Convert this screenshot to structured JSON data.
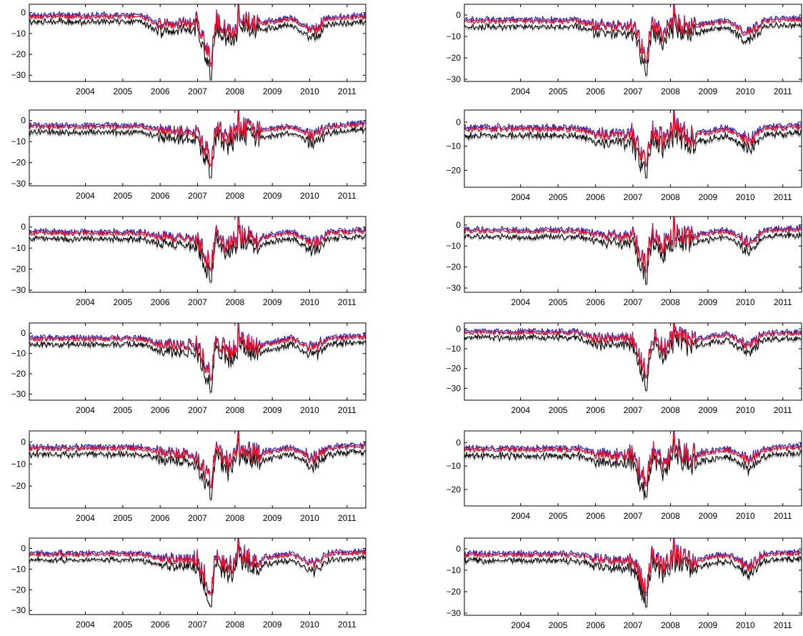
{
  "colors": {
    "lower": "#000000",
    "band": "#9a9a9a",
    "upper": "#1f1fbf",
    "estimate": "#e8102a",
    "axis": "#000000"
  },
  "chart_data": [
    {
      "type": "line",
      "panel": "r1c1",
      "x_ticks": [
        "2004",
        "2005",
        "2006",
        "2007",
        "2008",
        "2009",
        "2010",
        "2011"
      ],
      "xlim": [
        2003.0,
        2012.0
      ],
      "ylim": [
        -33,
        4
      ],
      "y_ticks": [
        0,
        -10,
        -20,
        -30
      ],
      "y_tick_labels": [
        "0",
        "−10",
        "−20",
        "−30"
      ],
      "grid": false,
      "series": [
        {
          "role": "estimate",
          "trend": [
            [
              2003.0,
              -2
            ],
            [
              2006.0,
              -2
            ],
            [
              2006.5,
              -6
            ],
            [
              2007.5,
              -5
            ],
            [
              2007.85,
              -22
            ],
            [
              2008.0,
              -4
            ],
            [
              2008.3,
              -10
            ],
            [
              2008.7,
              -4
            ],
            [
              2009.0,
              -6
            ],
            [
              2010.0,
              -3
            ],
            [
              2010.6,
              -9
            ],
            [
              2011.0,
              -3
            ],
            [
              2012.0,
              -2
            ]
          ],
          "min": [
            2007.85,
            -32
          ],
          "max": [
            2008.6,
            3
          ]
        }
      ]
    },
    {
      "type": "line",
      "panel": "r1c2",
      "x_ticks": [
        "2004",
        "2005",
        "2006",
        "2007",
        "2008",
        "2009",
        "2010",
        "2011"
      ],
      "xlim": [
        2003.0,
        2012.0
      ],
      "ylim": [
        -31,
        5
      ],
      "y_ticks": [
        0,
        -10,
        -20,
        -30
      ],
      "y_tick_labels": [
        "0",
        "−10",
        "−20",
        "−30"
      ],
      "grid": false,
      "series": [
        {
          "role": "estimate",
          "trend": [
            [
              2003.0,
              -3
            ],
            [
              2006.0,
              -3
            ],
            [
              2006.5,
              -5
            ],
            [
              2007.5,
              -6
            ],
            [
              2007.85,
              -20
            ],
            [
              2008.0,
              -4
            ],
            [
              2008.3,
              -9
            ],
            [
              2008.7,
              -4
            ],
            [
              2009.0,
              -6
            ],
            [
              2010.0,
              -3
            ],
            [
              2010.6,
              -9
            ],
            [
              2011.0,
              -3
            ],
            [
              2012.0,
              -2
            ]
          ],
          "min": [
            2007.85,
            -28
          ],
          "max": [
            2008.6,
            4
          ]
        }
      ]
    },
    {
      "type": "line",
      "panel": "r2c1",
      "x_ticks": [
        "2004",
        "2005",
        "2006",
        "2007",
        "2008",
        "2009",
        "2010",
        "2011"
      ],
      "xlim": [
        2003.0,
        2012.0
      ],
      "ylim": [
        -31,
        5
      ],
      "y_ticks": [
        0,
        -10,
        -20,
        -30
      ],
      "y_tick_labels": [
        "0",
        "−10",
        "−20",
        "−30"
      ],
      "grid": false,
      "series": [
        {
          "role": "estimate",
          "trend": [
            [
              2003.0,
              -3
            ],
            [
              2006.0,
              -3
            ],
            [
              2006.5,
              -5
            ],
            [
              2007.5,
              -6
            ],
            [
              2007.85,
              -19
            ],
            [
              2008.0,
              -3
            ],
            [
              2008.3,
              -9
            ],
            [
              2008.7,
              -3
            ],
            [
              2009.0,
              -6
            ],
            [
              2010.0,
              -3
            ],
            [
              2010.6,
              -8
            ],
            [
              2011.0,
              -3
            ],
            [
              2012.0,
              -2
            ]
          ],
          "min": [
            2007.85,
            -27
          ],
          "max": [
            2008.6,
            5
          ]
        }
      ]
    },
    {
      "type": "line",
      "panel": "r2c2",
      "x_ticks": [
        "2004",
        "2005",
        "2006",
        "2007",
        "2008",
        "2009",
        "2010",
        "2011"
      ],
      "xlim": [
        2003.0,
        2012.0
      ],
      "ylim": [
        -27,
        5
      ],
      "y_ticks": [
        0,
        -10,
        -20
      ],
      "y_tick_labels": [
        "0",
        "−10",
        "−20"
      ],
      "grid": false,
      "series": [
        {
          "role": "estimate",
          "trend": [
            [
              2003.0,
              -3
            ],
            [
              2006.0,
              -3
            ],
            [
              2006.5,
              -5
            ],
            [
              2007.5,
              -6
            ],
            [
              2007.85,
              -17
            ],
            [
              2008.0,
              -3
            ],
            [
              2008.3,
              -8
            ],
            [
              2008.7,
              -3
            ],
            [
              2009.0,
              -6
            ],
            [
              2010.0,
              -3
            ],
            [
              2010.6,
              -8
            ],
            [
              2011.0,
              -3
            ],
            [
              2012.0,
              -2
            ]
          ],
          "min": [
            2007.85,
            -23
          ],
          "max": [
            2008.6,
            4
          ]
        }
      ]
    },
    {
      "type": "line",
      "panel": "r3c1",
      "x_ticks": [
        "2004",
        "2005",
        "2006",
        "2007",
        "2008",
        "2009",
        "2010",
        "2011"
      ],
      "xlim": [
        2003.0,
        2012.0
      ],
      "ylim": [
        -31,
        5
      ],
      "y_ticks": [
        0,
        -10,
        -20,
        -30
      ],
      "y_tick_labels": [
        "0",
        "−10",
        "−20",
        "−30"
      ],
      "grid": false,
      "series": [
        {
          "role": "estimate",
          "trend": [
            [
              2003.0,
              -3
            ],
            [
              2006.0,
              -3
            ],
            [
              2006.5,
              -5
            ],
            [
              2007.5,
              -6
            ],
            [
              2007.85,
              -19
            ],
            [
              2008.0,
              -3
            ],
            [
              2008.3,
              -9
            ],
            [
              2008.7,
              -3
            ],
            [
              2009.0,
              -6
            ],
            [
              2010.0,
              -3
            ],
            [
              2010.6,
              -8
            ],
            [
              2011.0,
              -3
            ],
            [
              2012.0,
              -2
            ]
          ],
          "min": [
            2007.85,
            -26
          ],
          "max": [
            2008.6,
            4
          ]
        }
      ]
    },
    {
      "type": "line",
      "panel": "r3c2",
      "x_ticks": [
        "2004",
        "2005",
        "2006",
        "2007",
        "2008",
        "2009",
        "2010",
        "2011"
      ],
      "xlim": [
        2003.0,
        2012.0
      ],
      "ylim": [
        -32,
        4
      ],
      "y_ticks": [
        0,
        -10,
        -20,
        -30
      ],
      "y_tick_labels": [
        "0",
        "−10",
        "−20",
        "−30"
      ],
      "grid": false,
      "series": [
        {
          "role": "estimate",
          "trend": [
            [
              2003.0,
              -3
            ],
            [
              2006.0,
              -3
            ],
            [
              2006.5,
              -5
            ],
            [
              2007.5,
              -6
            ],
            [
              2007.85,
              -20
            ],
            [
              2008.0,
              -4
            ],
            [
              2008.3,
              -10
            ],
            [
              2008.7,
              -4
            ],
            [
              2009.0,
              -6
            ],
            [
              2010.0,
              -3
            ],
            [
              2010.6,
              -9
            ],
            [
              2011.0,
              -3
            ],
            [
              2012.0,
              -2
            ]
          ],
          "min": [
            2007.85,
            -28
          ],
          "max": [
            2008.6,
            4
          ]
        }
      ]
    },
    {
      "type": "line",
      "panel": "r4c1",
      "x_ticks": [
        "2004",
        "2005",
        "2006",
        "2007",
        "2008",
        "2009",
        "2010",
        "2011"
      ],
      "xlim": [
        2003.0,
        2012.0
      ],
      "ylim": [
        -33,
        5
      ],
      "y_ticks": [
        0,
        -10,
        -20,
        -30
      ],
      "y_tick_labels": [
        "0",
        "−10",
        "−20",
        "−30"
      ],
      "grid": false,
      "series": [
        {
          "role": "estimate",
          "trend": [
            [
              2003.0,
              -3
            ],
            [
              2006.0,
              -3
            ],
            [
              2006.5,
              -6
            ],
            [
              2007.5,
              -6
            ],
            [
              2007.85,
              -21
            ],
            [
              2008.0,
              -3
            ],
            [
              2008.3,
              -10
            ],
            [
              2008.7,
              -3
            ],
            [
              2009.0,
              -7
            ],
            [
              2010.0,
              -3
            ],
            [
              2010.6,
              -8
            ],
            [
              2011.0,
              -3
            ],
            [
              2012.0,
              -2
            ]
          ],
          "min": [
            2007.85,
            -29
          ],
          "max": [
            2008.6,
            4
          ]
        }
      ]
    },
    {
      "type": "line",
      "panel": "r4c2",
      "x_ticks": [
        "2004",
        "2005",
        "2006",
        "2007",
        "2008",
        "2009",
        "2010",
        "2011"
      ],
      "xlim": [
        2003.0,
        2012.0
      ],
      "ylim": [
        -36,
        3
      ],
      "y_ticks": [
        0,
        -10,
        -20,
        -30
      ],
      "y_tick_labels": [
        "0",
        "−10",
        "−20",
        "−30"
      ],
      "grid": false,
      "series": [
        {
          "role": "estimate",
          "trend": [
            [
              2003.0,
              -2
            ],
            [
              2006.0,
              -2
            ],
            [
              2006.5,
              -5
            ],
            [
              2007.5,
              -5
            ],
            [
              2007.85,
              -22
            ],
            [
              2008.0,
              -3
            ],
            [
              2008.3,
              -10
            ],
            [
              2008.7,
              -3
            ],
            [
              2009.0,
              -6
            ],
            [
              2010.0,
              -3
            ],
            [
              2010.6,
              -9
            ],
            [
              2011.0,
              -3
            ],
            [
              2012.0,
              -2
            ]
          ],
          "min": [
            2007.85,
            -31
          ],
          "max": [
            2008.6,
            3
          ]
        }
      ]
    },
    {
      "type": "line",
      "panel": "r5c1",
      "x_ticks": [
        "2004",
        "2005",
        "2006",
        "2007",
        "2008",
        "2009",
        "2010",
        "2011"
      ],
      "xlim": [
        2003.0,
        2012.0
      ],
      "ylim": [
        -30,
        5
      ],
      "y_ticks": [
        0,
        -10,
        -20
      ],
      "y_tick_labels": [
        "0",
        "−10",
        "−20"
      ],
      "grid": false,
      "series": [
        {
          "role": "estimate",
          "trend": [
            [
              2003.0,
              -3
            ],
            [
              2006.0,
              -3
            ],
            [
              2006.5,
              -5
            ],
            [
              2007.5,
              -6
            ],
            [
              2007.85,
              -19
            ],
            [
              2008.0,
              -3
            ],
            [
              2008.3,
              -9
            ],
            [
              2008.7,
              -3
            ],
            [
              2009.0,
              -6
            ],
            [
              2010.0,
              -3
            ],
            [
              2010.6,
              -8
            ],
            [
              2011.0,
              -3
            ],
            [
              2012.0,
              -2
            ]
          ],
          "min": [
            2007.85,
            -26
          ],
          "max": [
            2008.6,
            5
          ]
        }
      ]
    },
    {
      "type": "line",
      "panel": "r5c2",
      "x_ticks": [
        "2004",
        "2005",
        "2006",
        "2007",
        "2008",
        "2009",
        "2010",
        "2011"
      ],
      "xlim": [
        2003.0,
        2012.0
      ],
      "ylim": [
        -27,
        5
      ],
      "y_ticks": [
        0,
        -10,
        -20
      ],
      "y_tick_labels": [
        "0",
        "−10",
        "−20"
      ],
      "grid": false,
      "series": [
        {
          "role": "estimate",
          "trend": [
            [
              2003.0,
              -3
            ],
            [
              2006.0,
              -3
            ],
            [
              2006.5,
              -5
            ],
            [
              2007.5,
              -6
            ],
            [
              2007.85,
              -17
            ],
            [
              2008.0,
              -3
            ],
            [
              2008.3,
              -9
            ],
            [
              2008.7,
              -3
            ],
            [
              2009.0,
              -6
            ],
            [
              2010.0,
              -3
            ],
            [
              2010.6,
              -8
            ],
            [
              2011.0,
              -3
            ],
            [
              2012.0,
              -2
            ]
          ],
          "min": [
            2007.85,
            -23
          ],
          "max": [
            2008.6,
            4
          ]
        }
      ]
    },
    {
      "type": "line",
      "panel": "r6c1",
      "x_ticks": [
        "2004",
        "2005",
        "2006",
        "2007",
        "2008",
        "2009",
        "2010",
        "2011"
      ],
      "xlim": [
        2003.0,
        2012.0
      ],
      "ylim": [
        -32,
        5
      ],
      "y_ticks": [
        0,
        -10,
        -20,
        -30
      ],
      "y_tick_labels": [
        "0",
        "−10",
        "−20",
        "−30"
      ],
      "grid": false,
      "series": [
        {
          "role": "estimate",
          "trend": [
            [
              2003.0,
              -3
            ],
            [
              2006.0,
              -3
            ],
            [
              2006.5,
              -5
            ],
            [
              2007.5,
              -6
            ],
            [
              2007.85,
              -20
            ],
            [
              2008.0,
              -3
            ],
            [
              2008.3,
              -10
            ],
            [
              2008.7,
              -3
            ],
            [
              2009.0,
              -6
            ],
            [
              2010.0,
              -3
            ],
            [
              2010.6,
              -8
            ],
            [
              2011.0,
              -3
            ],
            [
              2012.0,
              -2
            ]
          ],
          "min": [
            2007.85,
            -28
          ],
          "max": [
            2008.6,
            4
          ]
        }
      ]
    },
    {
      "type": "line",
      "panel": "r6c2",
      "x_ticks": [
        "2004",
        "2005",
        "2006",
        "2007",
        "2008",
        "2009",
        "2010",
        "2011"
      ],
      "xlim": [
        2003.0,
        2012.0
      ],
      "ylim": [
        -31,
        5
      ],
      "y_ticks": [
        0,
        -10,
        -20,
        -30
      ],
      "y_tick_labels": [
        "0",
        "−10",
        "−20",
        "−30"
      ],
      "grid": false,
      "series": [
        {
          "role": "estimate",
          "trend": [
            [
              2003.0,
              -3
            ],
            [
              2006.0,
              -3
            ],
            [
              2006.5,
              -5
            ],
            [
              2007.5,
              -6
            ],
            [
              2007.85,
              -19
            ],
            [
              2008.0,
              -3
            ],
            [
              2008.3,
              -9
            ],
            [
              2008.7,
              -3
            ],
            [
              2009.0,
              -6
            ],
            [
              2010.0,
              -3
            ],
            [
              2010.6,
              -8
            ],
            [
              2011.0,
              -3
            ],
            [
              2012.0,
              -2
            ]
          ],
          "min": [
            2007.85,
            -27
          ],
          "max": [
            2008.6,
            4
          ]
        }
      ]
    }
  ]
}
